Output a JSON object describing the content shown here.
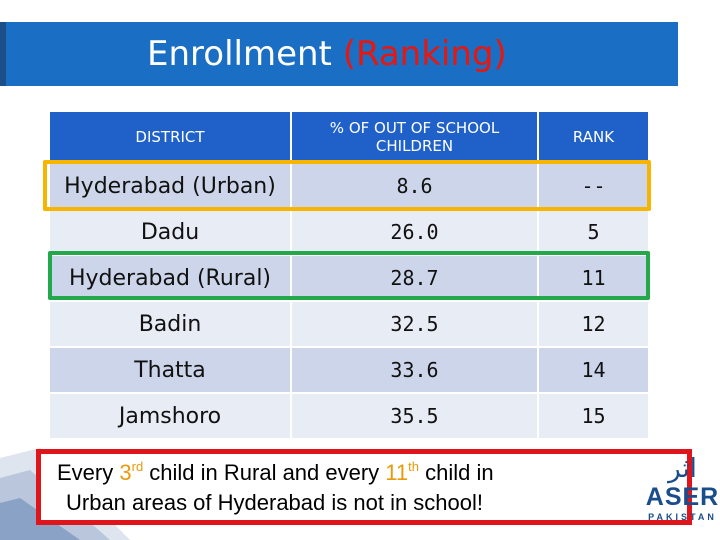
{
  "header": {
    "title_main": "Enrollment",
    "title_accent": "(Ranking)"
  },
  "table": {
    "columns": [
      "DISTRICT",
      "% OF OUT OF SCHOOL CHILDREN",
      "RANK"
    ],
    "rows": [
      {
        "district": "Hyderabad (Urban)",
        "percent": "8.6",
        "rank": "--"
      },
      {
        "district": "Dadu",
        "percent": "26.0",
        "rank": "5"
      },
      {
        "district": "Hyderabad (Rural)",
        "percent": "28.7",
        "rank": "11"
      },
      {
        "district": "Badin",
        "percent": "32.5",
        "rank": "12"
      },
      {
        "district": "Thatta",
        "percent": "33.6",
        "rank": "14"
      },
      {
        "district": "Jamshoro",
        "percent": "35.5",
        "rank": "15"
      }
    ]
  },
  "callout": {
    "l1_a": "Every ",
    "l1_num1": "3",
    "l1_sup1": "rd",
    "l1_b": " child in Rural and every ",
    "l1_num2": "11",
    "l1_sup2": "th",
    "l1_c": " child in",
    "l2": "Urban areas of Hyderabad is not in school!"
  },
  "logo": {
    "urdu": "اثر",
    "name": "ASER",
    "country": "PAKISTAN"
  },
  "colors": {
    "title_bar": "#1a6fc4",
    "accent_red": "#e8160c",
    "header_blue": "#1f61c9",
    "highlight_yellow": "#f7b500",
    "highlight_green": "#24a84c"
  }
}
